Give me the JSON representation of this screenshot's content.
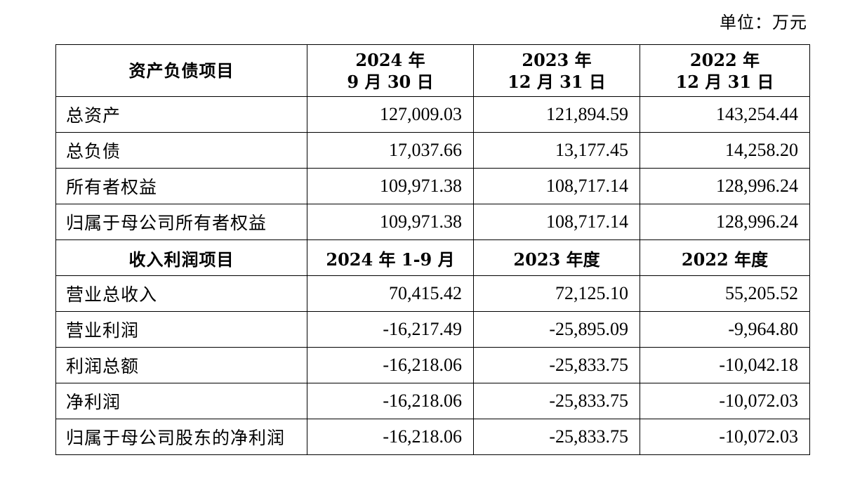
{
  "unit_label": "单位：万元",
  "balance_header": {
    "label": "资产负债项目",
    "periods": [
      {
        "line1": "2024 年",
        "line2": "9 月 30 日"
      },
      {
        "line1": "2023 年",
        "line2": "12 月 31 日"
      },
      {
        "line1": "2022 年",
        "line2": "12 月 31 日"
      }
    ]
  },
  "balance_rows": [
    {
      "label": "总资产",
      "values": [
        "127,009.03",
        "121,894.59",
        "143,254.44"
      ]
    },
    {
      "label": "总负债",
      "values": [
        "17,037.66",
        "13,177.45",
        "14,258.20"
      ]
    },
    {
      "label": "所有者权益",
      "values": [
        "109,971.38",
        "108,717.14",
        "128,996.24"
      ]
    },
    {
      "label": "归属于母公司所有者权益",
      "values": [
        "109,971.38",
        "108,717.14",
        "128,996.24"
      ]
    }
  ],
  "income_header": {
    "label": "收入利润项目",
    "periods": [
      "2024 年 1-9 月",
      "2023 年度",
      "2022 年度"
    ]
  },
  "income_rows": [
    {
      "label": "营业总收入",
      "values": [
        "70,415.42",
        "72,125.10",
        "55,205.52"
      ]
    },
    {
      "label": "营业利润",
      "values": [
        "-16,217.49",
        "-25,895.09",
        "-9,964.80"
      ]
    },
    {
      "label": "利润总额",
      "values": [
        "-16,218.06",
        "-25,833.75",
        "-10,042.18"
      ]
    },
    {
      "label": "净利润",
      "values": [
        "-16,218.06",
        "-25,833.75",
        "-10,072.03"
      ]
    },
    {
      "label": "归属于母公司股东的净利润",
      "values": [
        "-16,218.06",
        "-25,833.75",
        "-10,072.03"
      ]
    }
  ]
}
